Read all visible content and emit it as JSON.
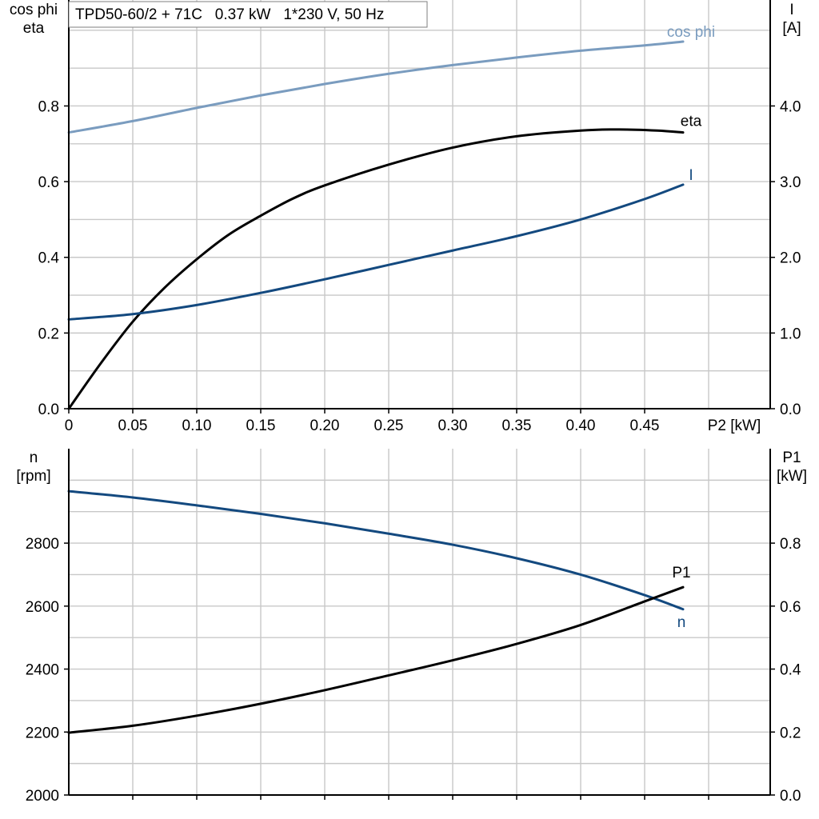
{
  "title": "TPD50-60/2 + 71C   0.37 kW   1*230 V, 50 Hz",
  "chart_data": [
    {
      "type": "line",
      "panel": "top",
      "xlabel": "P2 [kW]",
      "xlim": [
        0,
        0.55
      ],
      "x_ticks": [
        "0",
        "0.05",
        "0.10",
        "0.15",
        "0.20",
        "0.25",
        "0.30",
        "0.35",
        "0.40",
        "0.45"
      ],
      "y_left": {
        "label_lines": [
          "cos phi",
          "eta"
        ],
        "lim": [
          0,
          1.08
        ],
        "ticks": [
          "0.0",
          "0.2",
          "0.4",
          "0.6",
          "0.8"
        ]
      },
      "y_right": {
        "label_lines": [
          "I",
          "[A]"
        ],
        "lim": [
          0,
          5.4
        ],
        "ticks": [
          "0.0",
          "1.0",
          "2.0",
          "3.0",
          "4.0"
        ]
      },
      "grid": true,
      "series": [
        {
          "name": "cos phi",
          "axis": "left",
          "color": "#7a9cbf",
          "x": [
            0,
            0.05,
            0.1,
            0.15,
            0.2,
            0.25,
            0.3,
            0.35,
            0.4,
            0.45,
            0.48
          ],
          "y": [
            0.73,
            0.76,
            0.795,
            0.828,
            0.858,
            0.885,
            0.908,
            0.928,
            0.946,
            0.96,
            0.97
          ]
        },
        {
          "name": "eta",
          "axis": "left",
          "color": "#000000",
          "x": [
            0,
            0.025,
            0.05,
            0.075,
            0.1,
            0.125,
            0.15,
            0.175,
            0.2,
            0.25,
            0.3,
            0.35,
            0.4,
            0.43,
            0.46,
            0.48
          ],
          "y": [
            0,
            0.12,
            0.23,
            0.32,
            0.395,
            0.46,
            0.51,
            0.555,
            0.59,
            0.645,
            0.69,
            0.72,
            0.735,
            0.738,
            0.735,
            0.73
          ]
        },
        {
          "name": "I",
          "axis": "right",
          "color": "#13497f",
          "x": [
            0,
            0.05,
            0.1,
            0.15,
            0.2,
            0.25,
            0.3,
            0.35,
            0.4,
            0.45,
            0.48
          ],
          "y": [
            1.18,
            1.25,
            1.37,
            1.53,
            1.71,
            1.9,
            2.09,
            2.28,
            2.5,
            2.77,
            2.96
          ]
        }
      ]
    },
    {
      "type": "line",
      "panel": "bottom",
      "xlim": [
        0,
        0.55
      ],
      "y_left": {
        "label_lines": [
          "n",
          "[rpm]"
        ],
        "lim": [
          2000,
          3100
        ],
        "ticks": [
          "2000",
          "2200",
          "2400",
          "2600",
          "2800"
        ]
      },
      "y_right": {
        "label_lines": [
          "P1",
          "[kW]"
        ],
        "lim": [
          0,
          1.1
        ],
        "ticks": [
          "0.0",
          "0.2",
          "0.4",
          "0.6",
          "0.8"
        ]
      },
      "grid": true,
      "series": [
        {
          "name": "n",
          "axis": "left",
          "color": "#13497f",
          "x": [
            0,
            0.05,
            0.1,
            0.15,
            0.2,
            0.25,
            0.3,
            0.35,
            0.4,
            0.45,
            0.48
          ],
          "y": [
            2965,
            2945,
            2920,
            2893,
            2863,
            2830,
            2795,
            2752,
            2700,
            2635,
            2590
          ]
        },
        {
          "name": "P1",
          "axis": "right",
          "color": "#000000",
          "x": [
            0,
            0.05,
            0.1,
            0.15,
            0.2,
            0.25,
            0.3,
            0.35,
            0.4,
            0.45,
            0.48
          ],
          "y": [
            0.198,
            0.22,
            0.252,
            0.29,
            0.333,
            0.38,
            0.428,
            0.48,
            0.54,
            0.615,
            0.66
          ]
        }
      ]
    }
  ]
}
